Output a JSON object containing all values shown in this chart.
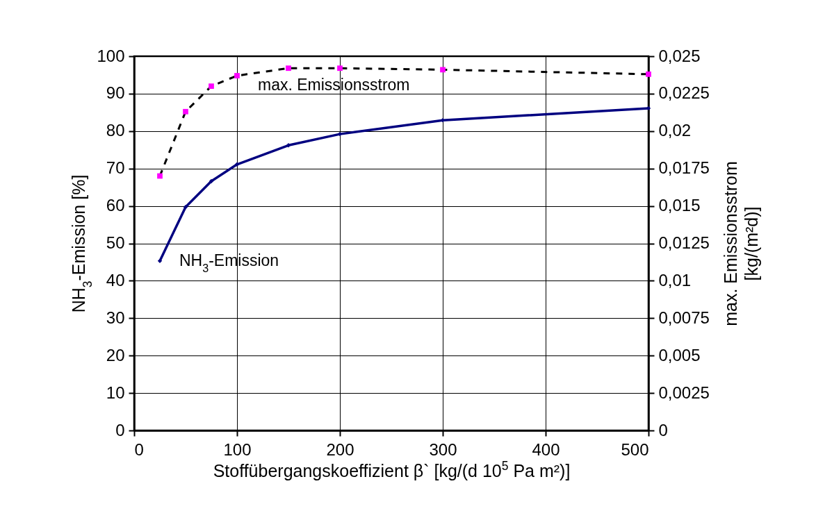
{
  "chart_data": {
    "type": "line",
    "xlabel": "Stoffübergangskoeffizient β` [kg/(d 10$^{5}$ Pa m²)]",
    "ylabel": "NH$_{3}$-Emission [%]",
    "y2label": "max. Emissionsstrom [kg/(m²d)]",
    "x": [
      25,
      50,
      75,
      100,
      150,
      200,
      300,
      500
    ],
    "series": [
      {
        "name": "NH$_{3}$-Emission",
        "color": "#000080",
        "values": [
          45.3,
          59.7,
          66.6,
          71.1,
          76.2,
          79.2,
          82.9,
          86.1
        ],
        "marker": "diamond",
        "line_style": "solid"
      },
      {
        "name": "max. Emissionsstrom",
        "color": "#ff00ff",
        "axis": "y2",
        "values": [
          0.017,
          0.0213,
          0.023,
          0.0237,
          0.0242,
          0.0242,
          0.0241,
          0.0238
        ],
        "marker": "square",
        "line_style": "dashed"
      }
    ],
    "xlim": [
      0,
      500
    ],
    "xticks": [
      0,
      100,
      200,
      300,
      400,
      500
    ],
    "ylim": [
      0,
      100
    ],
    "yticks": [
      0,
      10,
      20,
      30,
      40,
      50,
      60,
      70,
      80,
      90,
      100
    ],
    "y2lim": [
      0,
      0.025
    ],
    "y2ticks": [
      0,
      {
        "value": 0.0025,
        "label": "0,0025"
      },
      {
        "value": 0.005,
        "label": "0,005"
      },
      {
        "value": 0.0075,
        "label": "0,0075"
      },
      {
        "value": 0.01,
        "label": "0,01"
      },
      {
        "value": 0.0125,
        "label": "0,0125"
      },
      {
        "value": 0.015,
        "label": "0,015"
      },
      {
        "value": 0.0175,
        "label": "0,0175"
      },
      {
        "value": 0.02,
        "label": "0,02"
      },
      {
        "value": 0.0225,
        "label": "0,0225"
      },
      {
        "value": 0.025,
        "label": "0,025"
      }
    ],
    "grid": true
  }
}
